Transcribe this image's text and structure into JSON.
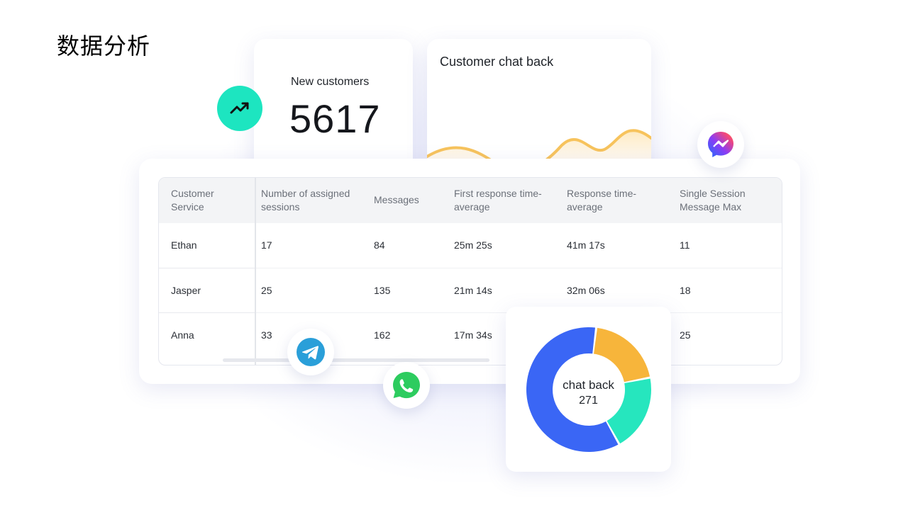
{
  "page": {
    "title": "数据分析"
  },
  "new_customers": {
    "label": "New customers",
    "value": "5617"
  },
  "customer_chat_back": {
    "label": "Customer chat back"
  },
  "table": {
    "headers": [
      [
        "Customer",
        "Service"
      ],
      [
        "Number of assigned",
        "sessions"
      ],
      [
        "Messages",
        ""
      ],
      [
        "First response time-",
        "average"
      ],
      [
        "Response time-",
        "average"
      ],
      [
        "Single Session",
        "Message Max"
      ]
    ],
    "rows": [
      [
        "Ethan",
        "17",
        "84",
        "25m 25s",
        "41m 17s",
        "11"
      ],
      [
        "Jasper",
        "25",
        "135",
        "21m 14s",
        "32m 06s",
        "18"
      ],
      [
        "Anna",
        "33",
        "162",
        "17m 34s",
        "",
        "25"
      ]
    ]
  },
  "donut": {
    "label": "chat back",
    "value": "271",
    "segments": [
      {
        "color": "#f7b53b",
        "share": 0.2
      },
      {
        "color": "#26e6be",
        "share": 0.2
      },
      {
        "color": "#3a66f5",
        "share": 0.6
      }
    ]
  },
  "icons": {
    "trend": "trending-up-icon",
    "messenger": "messenger-icon",
    "telegram": "telegram-icon",
    "whatsapp": "whatsapp-icon"
  },
  "colors": {
    "accent_teal": "#1de5c0",
    "wave": "#f7c35c",
    "donut_blue": "#3a66f5",
    "donut_orange": "#f7b53b",
    "donut_teal": "#26e6be"
  }
}
